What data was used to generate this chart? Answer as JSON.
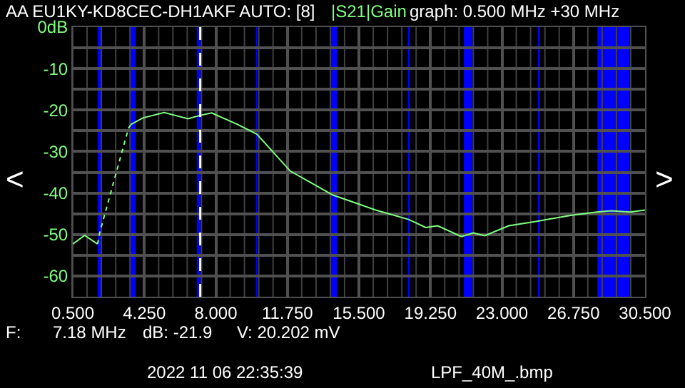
{
  "chart_data": {
    "type": "line",
    "title": "AA EU1KY-KD8CEC-DH1AKF AUTO: [8]",
    "subtitle": "|S21|Gain",
    "annotations": [
      "graph: 0.500 MHz +30 MHz",
      "F:",
      "7.18 MHz",
      "dB: -21.9",
      "V: 20.202 mV",
      "2022 11 06 22:35:39",
      "LPF_40M_.bmp",
      "<",
      ">"
    ],
    "series": [
      {
        "color": "#80ff80",
        "line_style": "solid",
        "x": [
          0.5,
          1.12,
          1.8
        ],
        "values": [
          -52.3,
          -50.2,
          -52.3
        ]
      },
      {
        "color": "#80ff80",
        "line_style": "dotted",
        "x": [
          1.8,
          1.92,
          3.42,
          3.54
        ],
        "values": [
          -52.3,
          -49.4,
          -24.4,
          -23.5
        ]
      },
      {
        "color": "#80ff80",
        "line_style": "solid",
        "x": [
          3.54,
          4.17,
          5.29,
          6.54,
          7.16,
          7.78,
          9.15,
          10.15,
          11.9,
          14.14,
          16.38,
          18.13,
          19.0,
          19.63,
          20.87,
          21.5,
          22.1,
          23.36,
          24.73,
          26.6,
          27.97,
          28.72,
          29.72,
          30.5
        ],
        "values": [
          -23.5,
          -21.9,
          -20.6,
          -22.1,
          -21.3,
          -20.7,
          -23.5,
          -25.8,
          -34.7,
          -40.5,
          -44.1,
          -46.4,
          -48.3,
          -47.9,
          -50.5,
          -49.6,
          -50.3,
          -47.9,
          -46.9,
          -45.4,
          -44.6,
          -44.3,
          -44.6,
          -44.1
        ]
      }
    ],
    "xlim": [
      0.5,
      30.5
    ],
    "ylim": [
      -65,
      0
    ],
    "xticks": [
      {
        "value": 0.5,
        "label": "0.500"
      },
      {
        "value": 4.25,
        "label": "4.250"
      },
      {
        "value": 8,
        "label": "8.000"
      },
      {
        "value": 11.75,
        "label": "11.750"
      },
      {
        "value": 15.5,
        "label": "15.500"
      },
      {
        "value": 19.25,
        "label": "19.250"
      },
      {
        "value": 23,
        "label": "23.000"
      },
      {
        "value": 26.75,
        "label": "26.750"
      },
      {
        "value": 30.5,
        "label": "30.500"
      }
    ],
    "yticks": [
      {
        "value": 0,
        "label": "0dB"
      },
      -10,
      -20,
      -30,
      -40,
      -50,
      -60,
      {
        "value": -5,
        "label": null
      },
      {
        "value": -15,
        "label": null
      },
      {
        "value": -25,
        "label": null
      },
      {
        "value": -35,
        "label": null
      },
      {
        "value": -45,
        "label": null
      },
      {
        "value": -55,
        "label": null
      },
      {
        "value": -65,
        "label": null
      }
    ],
    "grid": true,
    "marker": "none",
    "bands": [
      {
        "axis": "x",
        "from": 1.81,
        "to": 2.0,
        "color": "#0000ff"
      },
      {
        "axis": "x",
        "from": 3.5,
        "to": 3.8,
        "color": "#0000ff"
      },
      {
        "axis": "x",
        "from": 7.0,
        "to": 7.2,
        "color": "#0000ff"
      },
      {
        "axis": "x",
        "from": 10.1,
        "to": 10.15,
        "color": "#0000ff"
      },
      {
        "axis": "x",
        "from": 14.0,
        "to": 14.35,
        "color": "#0000ff"
      },
      {
        "axis": "x",
        "from": 18.068,
        "to": 18.168,
        "color": "#0000ff"
      },
      {
        "axis": "x",
        "from": 21.0,
        "to": 21.45,
        "color": "#0000ff"
      },
      {
        "axis": "x",
        "from": 24.89,
        "to": 24.99,
        "color": "#0000ff"
      },
      {
        "axis": "x",
        "from": 28.0,
        "to": 29.7,
        "color": "#0000ff"
      }
    ],
    "ref_lines": [
      {
        "axis": "x",
        "value": 7.18,
        "color": "#ffffff",
        "line_style": "dashed"
      }
    ]
  }
}
